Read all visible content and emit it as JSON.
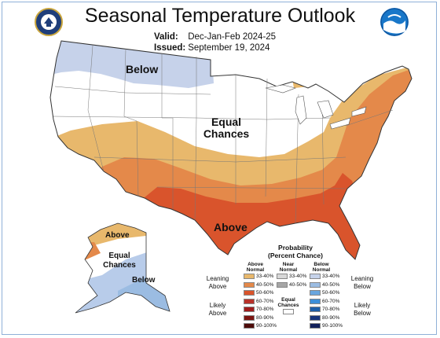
{
  "header": {
    "title": "Seasonal Temperature Outlook",
    "valid_label": "Valid:",
    "valid_value": "Dec-Jan-Feb 2024-25",
    "issued_label": "Issued:",
    "issued_value": "September 19, 2024"
  },
  "logos": {
    "left": "commerce-seal",
    "right": "noaa-logo"
  },
  "map_labels": {
    "below_north": "Below",
    "equal_chances_1": "Equal",
    "equal_chances_2": "Chances",
    "above_south": "Above",
    "ak_above": "Above",
    "ak_equal_1": "Equal",
    "ak_equal_2": "Chances",
    "ak_below": "Below"
  },
  "legend": {
    "title_1": "Probability",
    "title_2": "(Percent Chance)",
    "col_above": "Above",
    "col_above_2": "Normal",
    "col_near": "Near",
    "col_near_2": "Normal",
    "col_below": "Below",
    "col_below_2": "Normal",
    "leaning": "Leaning",
    "above": "Above",
    "below": "Below",
    "likely": "Likely",
    "equal_1": "Equal",
    "equal_2": "Chances",
    "ranges": [
      "33-40%",
      "40-50%",
      "50-60%",
      "60-70%",
      "70-80%",
      "80-90%",
      "90-100%"
    ],
    "above_colors": [
      "#e8b86c",
      "#e4894a",
      "#d9542c",
      "#b8322a",
      "#a01c1c",
      "#7c1410",
      "#4e0c0a"
    ],
    "near_colors": [
      "#d8d8d8",
      "#a6a6a6"
    ],
    "below_colors": [
      "#c5d2ea",
      "#9bbce2",
      "#6aa6de",
      "#3d8fd8",
      "#1d5ea8",
      "#17357c",
      "#12205a"
    ]
  }
}
